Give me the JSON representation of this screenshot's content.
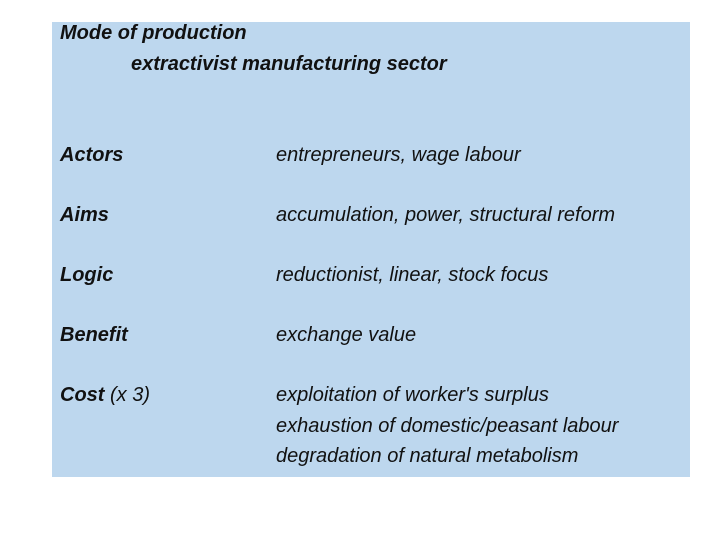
{
  "header": {
    "title": "Mode of production",
    "subtitle": "extractivist manufacturing sector"
  },
  "rows": [
    {
      "label": "Actors",
      "value": [
        "entrepreneurs, wage labour"
      ]
    },
    {
      "label": "Aims",
      "value": [
        "accumulation, power, structural reform"
      ]
    },
    {
      "label": "Logic",
      "value": [
        "reductionist, linear, stock focus"
      ]
    },
    {
      "label": "Benefit",
      "value": [
        "exchange value"
      ]
    },
    {
      "label": "Cost",
      "note": "(x 3)",
      "value": [
        "exploitation of worker's surplus",
        "exhaustion of domestic/peasant labour",
        "degradation of natural metabolism"
      ]
    }
  ]
}
